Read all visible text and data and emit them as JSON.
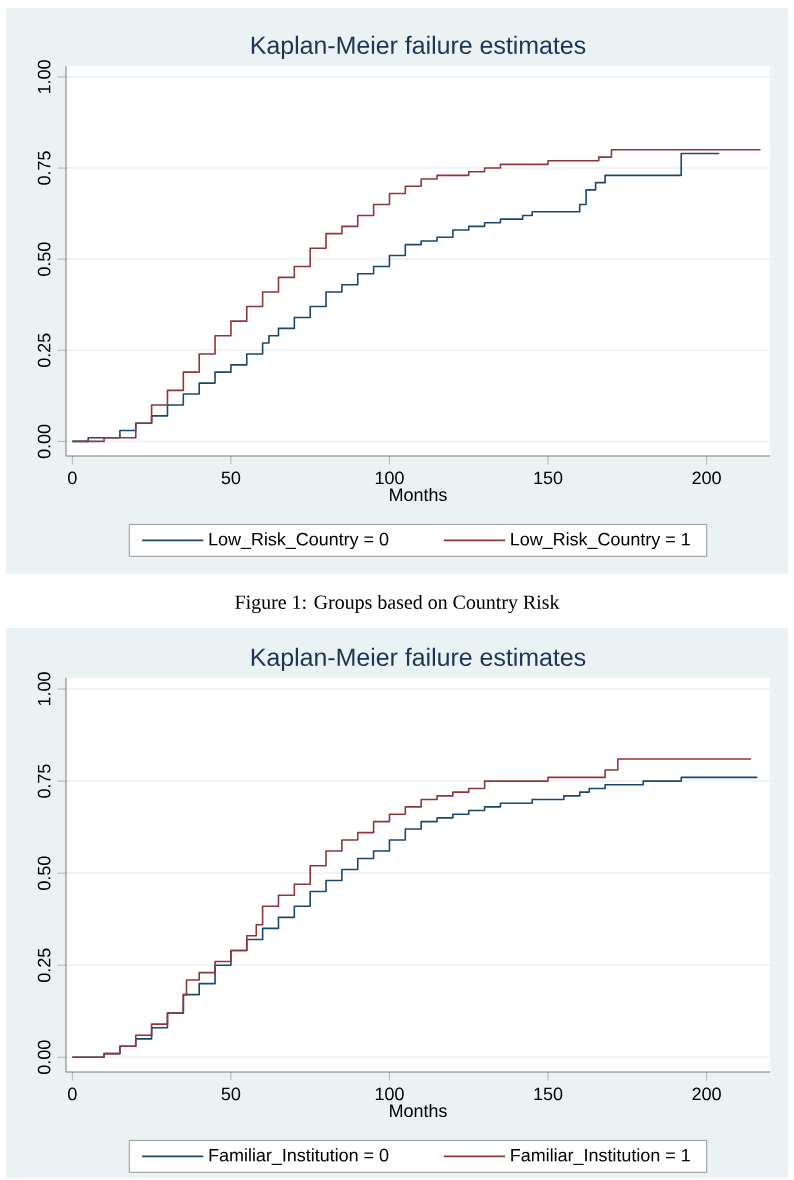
{
  "chart_data": [
    {
      "type": "step",
      "title": "Kaplan-Meier failure estimates",
      "xlabel": "Months",
      "xlim": [
        -2,
        220
      ],
      "ylim": [
        -0.04,
        1.03
      ],
      "xticks": [
        0,
        50,
        100,
        150,
        200
      ],
      "yticks": [
        {
          "value": 0,
          "label": "0.00"
        },
        {
          "value": 0.25,
          "label": "0.25"
        },
        {
          "value": 0.5,
          "label": "0.50"
        },
        {
          "value": 0.75,
          "label": "0.75"
        },
        {
          "value": 1,
          "label": "1.00"
        }
      ],
      "grid": "y",
      "legend": "bottom",
      "annotations": [
        "Figure 1: Groups based on Country Risk"
      ],
      "series": [
        {
          "name": "Low_Risk_Country = 0",
          "color": "#1a476f",
          "x": [
            0,
            5,
            10,
            15,
            20,
            25,
            30,
            35,
            40,
            45,
            50,
            55,
            60,
            62,
            65,
            70,
            75,
            80,
            85,
            90,
            95,
            100,
            105,
            110,
            115,
            120,
            125,
            130,
            135,
            142,
            145,
            155,
            160,
            162,
            165,
            168,
            192,
            204
          ],
          "values": [
            0,
            0.01,
            0.01,
            0.03,
            0.05,
            0.07,
            0.1,
            0.13,
            0.16,
            0.19,
            0.21,
            0.24,
            0.27,
            0.29,
            0.31,
            0.34,
            0.37,
            0.41,
            0.43,
            0.46,
            0.48,
            0.51,
            0.54,
            0.55,
            0.56,
            0.58,
            0.59,
            0.6,
            0.61,
            0.62,
            0.63,
            0.63,
            0.65,
            0.69,
            0.71,
            0.73,
            0.79,
            0.79
          ]
        },
        {
          "name": "Low_Risk_Country = 1",
          "color": "#90353b",
          "x": [
            0,
            10,
            20,
            25,
            30,
            35,
            40,
            45,
            50,
            55,
            60,
            65,
            70,
            75,
            80,
            85,
            90,
            95,
            100,
            105,
            110,
            115,
            120,
            125,
            130,
            135,
            140,
            150,
            160,
            166,
            170,
            180,
            217
          ],
          "values": [
            0,
            0.01,
            0.05,
            0.1,
            0.14,
            0.19,
            0.24,
            0.29,
            0.33,
            0.37,
            0.41,
            0.45,
            0.48,
            0.53,
            0.57,
            0.59,
            0.62,
            0.65,
            0.68,
            0.7,
            0.72,
            0.73,
            0.73,
            0.74,
            0.75,
            0.76,
            0.76,
            0.77,
            0.77,
            0.78,
            0.8,
            0.8,
            0.8
          ]
        }
      ]
    },
    {
      "type": "step",
      "title": "Kaplan-Meier failure estimates",
      "xlabel": "Months",
      "xlim": [
        -2,
        220
      ],
      "ylim": [
        -0.04,
        1.03
      ],
      "xticks": [
        0,
        50,
        100,
        150,
        200
      ],
      "yticks": [
        {
          "value": 0,
          "label": "0.00"
        },
        {
          "value": 0.25,
          "label": "0.25"
        },
        {
          "value": 0.5,
          "label": "0.50"
        },
        {
          "value": 0.75,
          "label": "0.75"
        },
        {
          "value": 1,
          "label": "1.00"
        }
      ],
      "grid": "y",
      "legend": "bottom",
      "series": [
        {
          "name": "Familiar_Institution = 0",
          "color": "#1a476f",
          "x": [
            0,
            10,
            15,
            20,
            25,
            30,
            35,
            40,
            45,
            50,
            55,
            60,
            65,
            70,
            75,
            80,
            85,
            90,
            95,
            100,
            105,
            110,
            115,
            120,
            125,
            130,
            135,
            140,
            145,
            155,
            160,
            163,
            168,
            180,
            192,
            216
          ],
          "values": [
            0,
            0.01,
            0.03,
            0.05,
            0.08,
            0.12,
            0.17,
            0.2,
            0.25,
            0.29,
            0.32,
            0.35,
            0.38,
            0.41,
            0.45,
            0.48,
            0.51,
            0.54,
            0.56,
            0.59,
            0.62,
            0.64,
            0.65,
            0.66,
            0.67,
            0.68,
            0.69,
            0.69,
            0.7,
            0.71,
            0.72,
            0.73,
            0.74,
            0.75,
            0.76,
            0.76
          ]
        },
        {
          "name": "Familiar_Institution = 1",
          "color": "#90353b",
          "x": [
            0,
            10,
            15,
            20,
            25,
            30,
            35,
            36,
            40,
            45,
            50,
            55,
            58,
            60,
            65,
            70,
            75,
            80,
            85,
            90,
            95,
            100,
            105,
            110,
            115,
            120,
            125,
            130,
            135,
            145,
            150,
            165,
            168,
            172,
            214
          ],
          "values": [
            0,
            0.01,
            0.03,
            0.06,
            0.09,
            0.12,
            0.17,
            0.21,
            0.23,
            0.26,
            0.29,
            0.33,
            0.36,
            0.41,
            0.44,
            0.47,
            0.52,
            0.56,
            0.59,
            0.61,
            0.64,
            0.66,
            0.68,
            0.7,
            0.71,
            0.72,
            0.73,
            0.75,
            0.75,
            0.75,
            0.76,
            0.76,
            0.78,
            0.81,
            0.81
          ]
        }
      ]
    }
  ]
}
